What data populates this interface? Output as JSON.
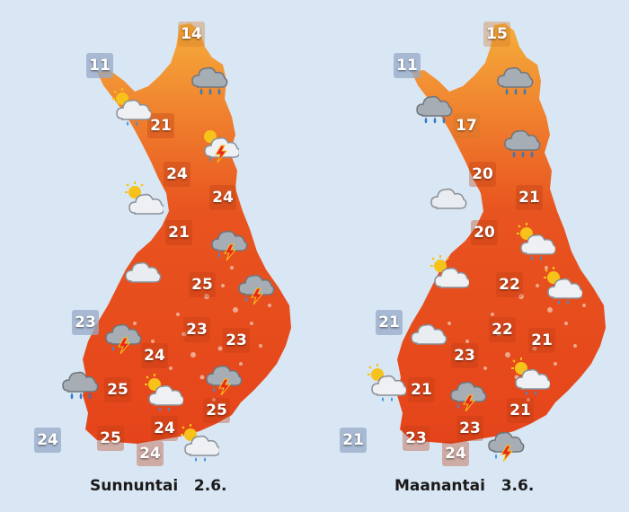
{
  "maps": [
    {
      "day_label": "Sunnuntai   2.6.",
      "temperatures": [
        "14",
        "11",
        "21",
        "24",
        "24",
        "21",
        "25",
        "23",
        "23",
        "23",
        "24",
        "25",
        "25",
        "24",
        "24",
        "25"
      ],
      "icons": [
        "rain-cloud-icon",
        "partly-cloudy-rain-icon",
        "thunderstorm-sun-icon",
        "partly-cloudy-icon",
        "thunderstorm-icon",
        "cloud-icon",
        "thunderstorm-icon",
        "thunderstorm-icon",
        "rain-cloud-icon",
        "partly-cloudy-rain-icon",
        "thunderstorm-icon",
        "partly-cloudy-rain-icon"
      ]
    },
    {
      "day_label": "Maanantai   3.6.",
      "temperatures": [
        "15",
        "11",
        "17",
        "20",
        "21",
        "20",
        "22",
        "21",
        "22",
        "21",
        "23",
        "21",
        "21",
        "23",
        "21",
        "24"
      ],
      "icons": [
        "rain-cloud-icon",
        "rain-cloud-icon",
        "rain-cloud-icon",
        "cloud-icon",
        "partly-cloudy-rain-icon",
        "partly-cloudy-icon",
        "partly-cloudy-rain-icon",
        "cloud-icon",
        "partly-cloudy-rain-icon",
        "thunderstorm-icon",
        "partly-cloudy-rain-icon",
        "thunderstorm-icon"
      ]
    }
  ],
  "colors": {
    "background": "#d9e6f3",
    "map_hot": "#e8461e",
    "map_warm": "#f07a2a",
    "map_mild": "#f5a83a",
    "cloud": "#e6e9ee",
    "cloud_dark": "#9fa5ad",
    "rain": "#3a8fe0",
    "sun": "#f7c21a",
    "lightning": "#e8281c"
  }
}
